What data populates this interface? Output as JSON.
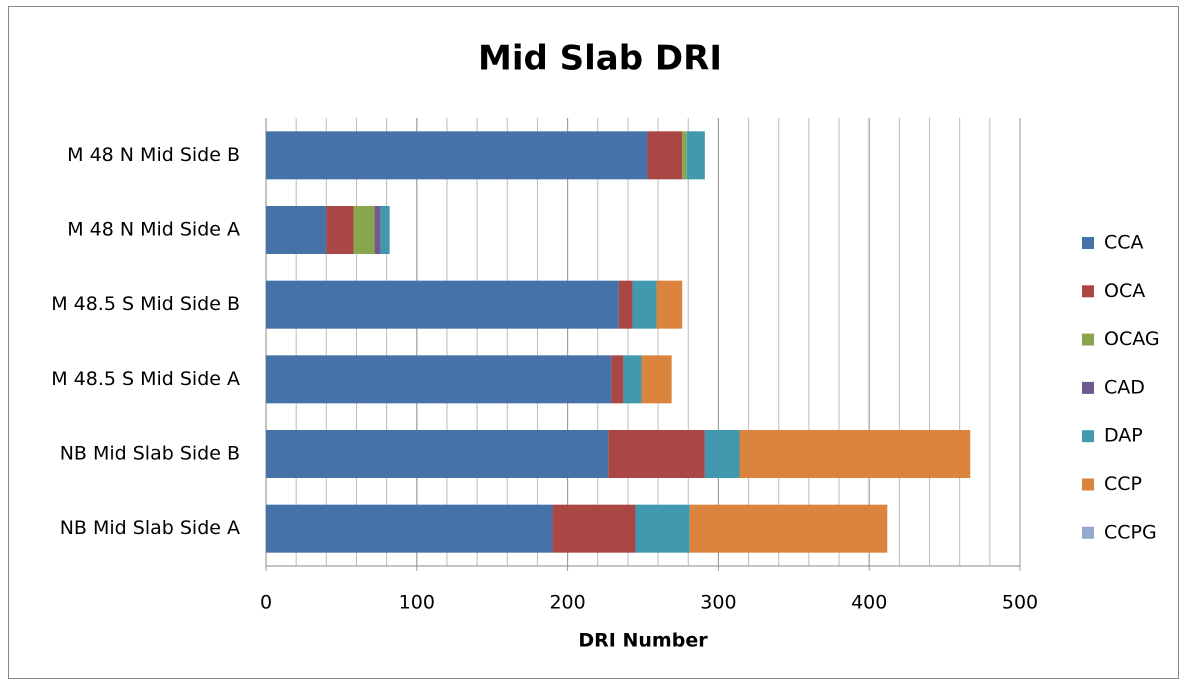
{
  "chart_data": {
    "type": "stacked_barh",
    "title": "Mid Slab DRI",
    "x_label": "DRI Number",
    "categories": [
      "M 48 N Mid Side B",
      "M 48 N Mid Side A",
      "M 48.5 S Mid Side B",
      "M 48.5 S Mid Side A",
      "NB Mid Slab Side B",
      "NB Mid Slab Side A"
    ],
    "series": [
      {
        "name": "CCA",
        "color": "#4572a7",
        "values": [
          253,
          40,
          234,
          229,
          227,
          190
        ]
      },
      {
        "name": "OCA",
        "color": "#aa4643",
        "values": [
          23,
          18,
          9,
          8,
          64,
          55
        ]
      },
      {
        "name": "OCAG",
        "color": "#89a54e",
        "values": [
          3,
          14,
          0,
          0,
          0,
          0
        ]
      },
      {
        "name": "CAD",
        "color": "#71588f",
        "values": [
          0,
          4,
          0,
          0,
          0,
          0
        ]
      },
      {
        "name": "DAP",
        "color": "#4198af",
        "values": [
          12,
          6,
          16,
          12,
          23,
          36
        ]
      },
      {
        "name": "CCP",
        "color": "#db843d",
        "values": [
          0,
          0,
          17,
          20,
          153,
          131
        ]
      },
      {
        "name": "CCPG",
        "color": "#93a9cf",
        "values": [
          0,
          0,
          0,
          0,
          0,
          0
        ]
      }
    ],
    "xlim": [
      0,
      500
    ],
    "xticks": [
      0,
      100,
      200,
      300,
      400,
      500
    ],
    "minor_grid_interval": 20,
    "grid": true,
    "legend": "right"
  }
}
